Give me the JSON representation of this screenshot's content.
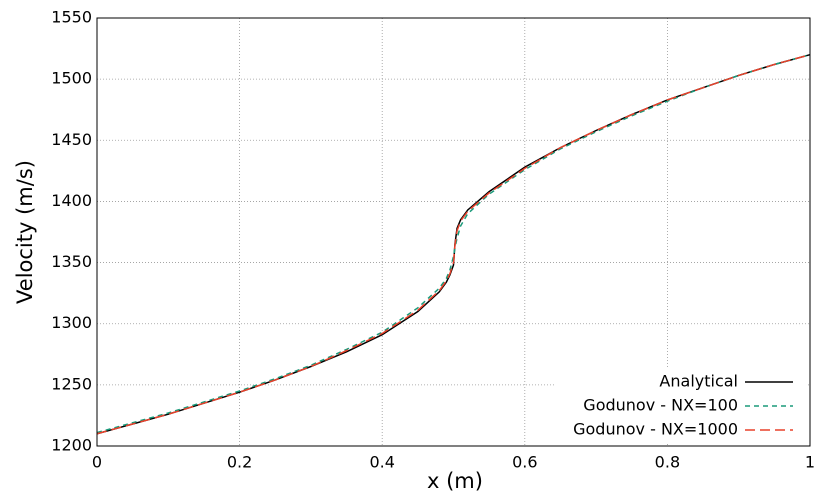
{
  "chart_data": {
    "type": "line",
    "xlabel": "x (m)",
    "ylabel": "Velocity (m/s)",
    "x": [
      0,
      0.05,
      0.1,
      0.15,
      0.2,
      0.25,
      0.3,
      0.35,
      0.4,
      0.45,
      0.48,
      0.49,
      0.495,
      0.5,
      0.502,
      0.505,
      0.51,
      0.52,
      0.55,
      0.6,
      0.65,
      0.7,
      0.75,
      0.8,
      0.85,
      0.9,
      0.95,
      1
    ],
    "series": [
      {
        "name": "Analytical",
        "color": "#000000",
        "dash": "none",
        "values": [
          1210,
          1218,
          1226,
          1235,
          1244,
          1254,
          1265,
          1277,
          1291,
          1310,
          1326,
          1334,
          1340,
          1348,
          1365,
          1378,
          1385,
          1393,
          1408,
          1428,
          1444,
          1458,
          1471,
          1483,
          1493,
          1503,
          1512,
          1520
        ]
      },
      {
        "name": "Godunov - NX=100",
        "color": "#1a9a7a",
        "dash": "5,4",
        "values": [
          1211,
          1219,
          1227,
          1236,
          1245,
          1255,
          1266,
          1279,
          1293,
          1313,
          1329,
          1337,
          1344,
          1355,
          1362,
          1370,
          1380,
          1390,
          1406,
          1426,
          1443,
          1457,
          1470,
          1482,
          1493,
          1503,
          1512,
          1520
        ]
      },
      {
        "name": "Godunov - NX=1000",
        "color": "#e8402a",
        "dash": "10,5",
        "values": [
          1210,
          1218,
          1226,
          1235,
          1244,
          1254,
          1265,
          1278,
          1292,
          1311,
          1327,
          1335,
          1341,
          1350,
          1364,
          1376,
          1384,
          1392,
          1407,
          1427,
          1444,
          1458,
          1471,
          1483,
          1493,
          1503,
          1512,
          1520
        ]
      }
    ],
    "xlim": [
      0,
      1
    ],
    "xticks": [
      0,
      0.2,
      0.4,
      0.6,
      0.8,
      1
    ],
    "ylim": [
      1200,
      1550
    ],
    "yticks": [
      1200,
      1250,
      1300,
      1350,
      1400,
      1450,
      1500,
      1550
    ],
    "grid": true,
    "legend": "lower-right"
  }
}
